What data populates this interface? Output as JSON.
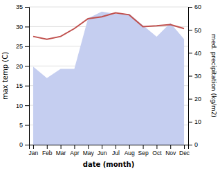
{
  "chart_data": {
    "type": "line",
    "categories": [
      "Jan",
      "Feb",
      "Mar",
      "Apr",
      "May",
      "Jun",
      "Jul",
      "Aug",
      "Sep",
      "Oct",
      "Nov",
      "Dec"
    ],
    "series": [
      {
        "type": "area",
        "axis": "y2",
        "color": "#c5cef0",
        "values": [
          34,
          29,
          33,
          33,
          55,
          58,
          57,
          57,
          52,
          47,
          53,
          46
        ]
      },
      {
        "type": "line",
        "color": "#c0504d",
        "values": [
          27.5,
          26.8,
          27.5,
          29.5,
          32.0,
          32.5,
          33.5,
          33.0,
          30.0,
          30.2,
          30.5,
          29.5
        ]
      }
    ],
    "xlabel": "date (month)",
    "ylabel": "max temp (C)",
    "y2label": "med. precipitation (kg/m2)",
    "ylim": [
      0,
      35
    ],
    "yticks": [
      0,
      5,
      10,
      15,
      20,
      25,
      30,
      35
    ],
    "y2lim": [
      0,
      60
    ],
    "y2ticks": [
      0,
      10,
      20,
      30,
      40,
      50,
      60
    ],
    "grid": true
  }
}
